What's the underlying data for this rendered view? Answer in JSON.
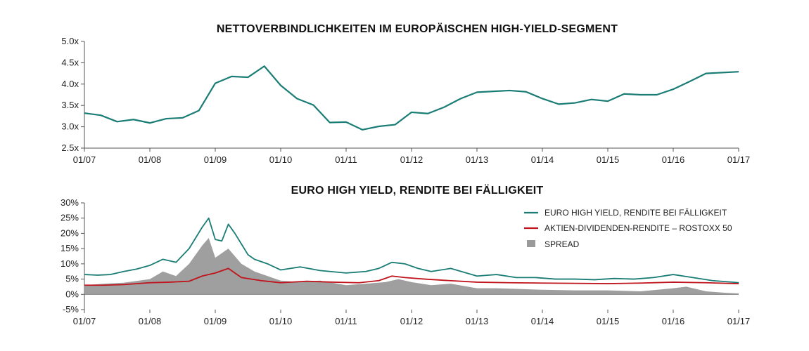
{
  "colors": {
    "teal": "#1a7d75",
    "red": "#c0141c",
    "gray": "#9a9a9a",
    "axis": "#555555"
  },
  "chart_data": [
    {
      "type": "line",
      "title": "NETTOVERBINDLICHKEITEN IM EUROPÄISCHEN HIGH-YIELD-SEGMENT",
      "xlim": [
        2007.0,
        2017.0
      ],
      "ylim": [
        2.5,
        5.0
      ],
      "x_ticks": [
        "01/07",
        "01/08",
        "01/09",
        "01/10",
        "01/11",
        "01/12",
        "01/13",
        "01/14",
        "01/15",
        "01/16",
        "01/17"
      ],
      "y_ticks": [
        "2.5x",
        "3.0x",
        "3.5x",
        "4.0x",
        "4.5x",
        "5.0x"
      ],
      "y_tick_values": [
        2.5,
        3.0,
        3.5,
        4.0,
        4.5,
        5.0
      ],
      "series": [
        {
          "color": "#1a7d75",
          "x": [
            2007.0,
            2007.25,
            2007.5,
            2007.75,
            2008.0,
            2008.25,
            2008.5,
            2008.75,
            2009.0,
            2009.25,
            2009.5,
            2009.75,
            2010.0,
            2010.25,
            2010.5,
            2010.75,
            2011.0,
            2011.25,
            2011.5,
            2011.75,
            2012.0,
            2012.25,
            2012.5,
            2012.75,
            2013.0,
            2013.25,
            2013.5,
            2013.75,
            2014.0,
            2014.25,
            2014.5,
            2014.75,
            2015.0,
            2015.25,
            2015.5,
            2015.75,
            2016.0,
            2016.25,
            2016.5,
            2016.75,
            2017.0
          ],
          "y": [
            3.32,
            3.27,
            3.12,
            3.17,
            3.09,
            3.19,
            3.21,
            3.38,
            4.02,
            4.18,
            4.16,
            4.42,
            3.97,
            3.66,
            3.51,
            3.1,
            3.11,
            2.93,
            3.01,
            3.05,
            3.34,
            3.31,
            3.46,
            3.66,
            3.81,
            3.83,
            3.85,
            3.82,
            3.66,
            3.53,
            3.56,
            3.64,
            3.6,
            3.77,
            3.75,
            3.75,
            3.88,
            4.06,
            4.25,
            4.27,
            4.29
          ]
        }
      ]
    },
    {
      "type": "line",
      "title": "EURO HIGH YIELD, RENDITE BEI FÄLLIGKEIT",
      "xlim": [
        2007.0,
        2017.0
      ],
      "ylim": [
        -5,
        30
      ],
      "x_ticks": [
        "01/07",
        "01/08",
        "01/09",
        "01/10",
        "01/11",
        "01/12",
        "01/13",
        "01/14",
        "01/15",
        "01/16",
        "01/17"
      ],
      "y_ticks": [
        "-5%",
        "0%",
        "5%",
        "10%",
        "15%",
        "20%",
        "25%",
        "30%"
      ],
      "y_tick_values": [
        -5,
        0,
        5,
        10,
        15,
        20,
        25,
        30
      ],
      "legend_position": "top-right",
      "series": [
        {
          "name": "EURO HIGH YIELD, RENDITE BEI FÄLLIGKEIT",
          "color": "#1a7d75",
          "x": [
            2007.0,
            2007.2,
            2007.4,
            2007.6,
            2007.8,
            2008.0,
            2008.2,
            2008.4,
            2008.6,
            2008.8,
            2008.9,
            2009.0,
            2009.1,
            2009.2,
            2009.3,
            2009.4,
            2009.5,
            2009.6,
            2009.8,
            2010.0,
            2010.3,
            2010.6,
            2011.0,
            2011.3,
            2011.5,
            2011.7,
            2011.9,
            2012.1,
            2012.3,
            2012.6,
            2013.0,
            2013.3,
            2013.6,
            2013.9,
            2014.2,
            2014.5,
            2014.8,
            2015.1,
            2015.4,
            2015.7,
            2016.0,
            2016.3,
            2016.6,
            2016.9,
            2017.0
          ],
          "y": [
            6.5,
            6.3,
            6.5,
            7.5,
            8.3,
            9.5,
            11.5,
            10.5,
            15.0,
            22.0,
            25.0,
            18.0,
            17.5,
            23.0,
            20.0,
            16.5,
            13.0,
            11.5,
            10.0,
            8.0,
            9.0,
            7.8,
            7.0,
            7.5,
            8.5,
            10.5,
            10.0,
            8.5,
            7.5,
            8.5,
            6.0,
            6.5,
            5.5,
            5.5,
            5.0,
            5.0,
            4.8,
            5.2,
            5.0,
            5.5,
            6.5,
            5.5,
            4.5,
            4.0,
            3.8
          ]
        },
        {
          "name": "AKTIEN-DIVIDENDEN-RENDITE – ROSTOXX 50",
          "color": "#c0141c",
          "x": [
            2007.0,
            2007.3,
            2007.6,
            2008.0,
            2008.3,
            2008.6,
            2008.8,
            2009.0,
            2009.2,
            2009.4,
            2009.7,
            2010.0,
            2010.4,
            2010.8,
            2011.2,
            2011.5,
            2011.7,
            2011.9,
            2012.2,
            2012.5,
            2013.0,
            2013.5,
            2014.0,
            2014.5,
            2015.0,
            2015.5,
            2016.0,
            2016.5,
            2017.0
          ],
          "y": [
            3.0,
            3.0,
            3.2,
            3.8,
            4.0,
            4.3,
            6.0,
            7.0,
            8.5,
            5.5,
            4.5,
            3.8,
            4.3,
            4.0,
            3.8,
            4.5,
            6.0,
            5.5,
            5.0,
            4.6,
            4.0,
            3.8,
            3.7,
            3.6,
            3.5,
            3.7,
            4.0,
            3.8,
            3.5
          ]
        },
        {
          "name": "SPREAD",
          "color": "#9a9a9a",
          "x": [
            2007.0,
            2007.3,
            2007.6,
            2008.0,
            2008.2,
            2008.4,
            2008.6,
            2008.8,
            2008.9,
            2009.0,
            2009.2,
            2009.4,
            2009.6,
            2009.8,
            2010.0,
            2010.3,
            2010.6,
            2011.0,
            2011.3,
            2011.6,
            2011.8,
            2012.0,
            2012.3,
            2012.6,
            2013.0,
            2013.3,
            2013.6,
            2014.0,
            2014.5,
            2015.0,
            2015.5,
            2016.0,
            2016.2,
            2016.5,
            2016.8,
            2017.0
          ],
          "y": [
            3.0,
            3.5,
            3.8,
            5.0,
            7.5,
            6.0,
            10.0,
            16.0,
            18.5,
            12.0,
            15.0,
            10.0,
            7.5,
            6.0,
            4.5,
            4.0,
            4.5,
            3.0,
            3.5,
            4.0,
            5.0,
            4.0,
            3.0,
            3.5,
            2.0,
            2.0,
            1.8,
            1.5,
            1.3,
            1.3,
            1.0,
            2.0,
            2.5,
            1.0,
            0.5,
            0.3
          ]
        }
      ]
    }
  ]
}
